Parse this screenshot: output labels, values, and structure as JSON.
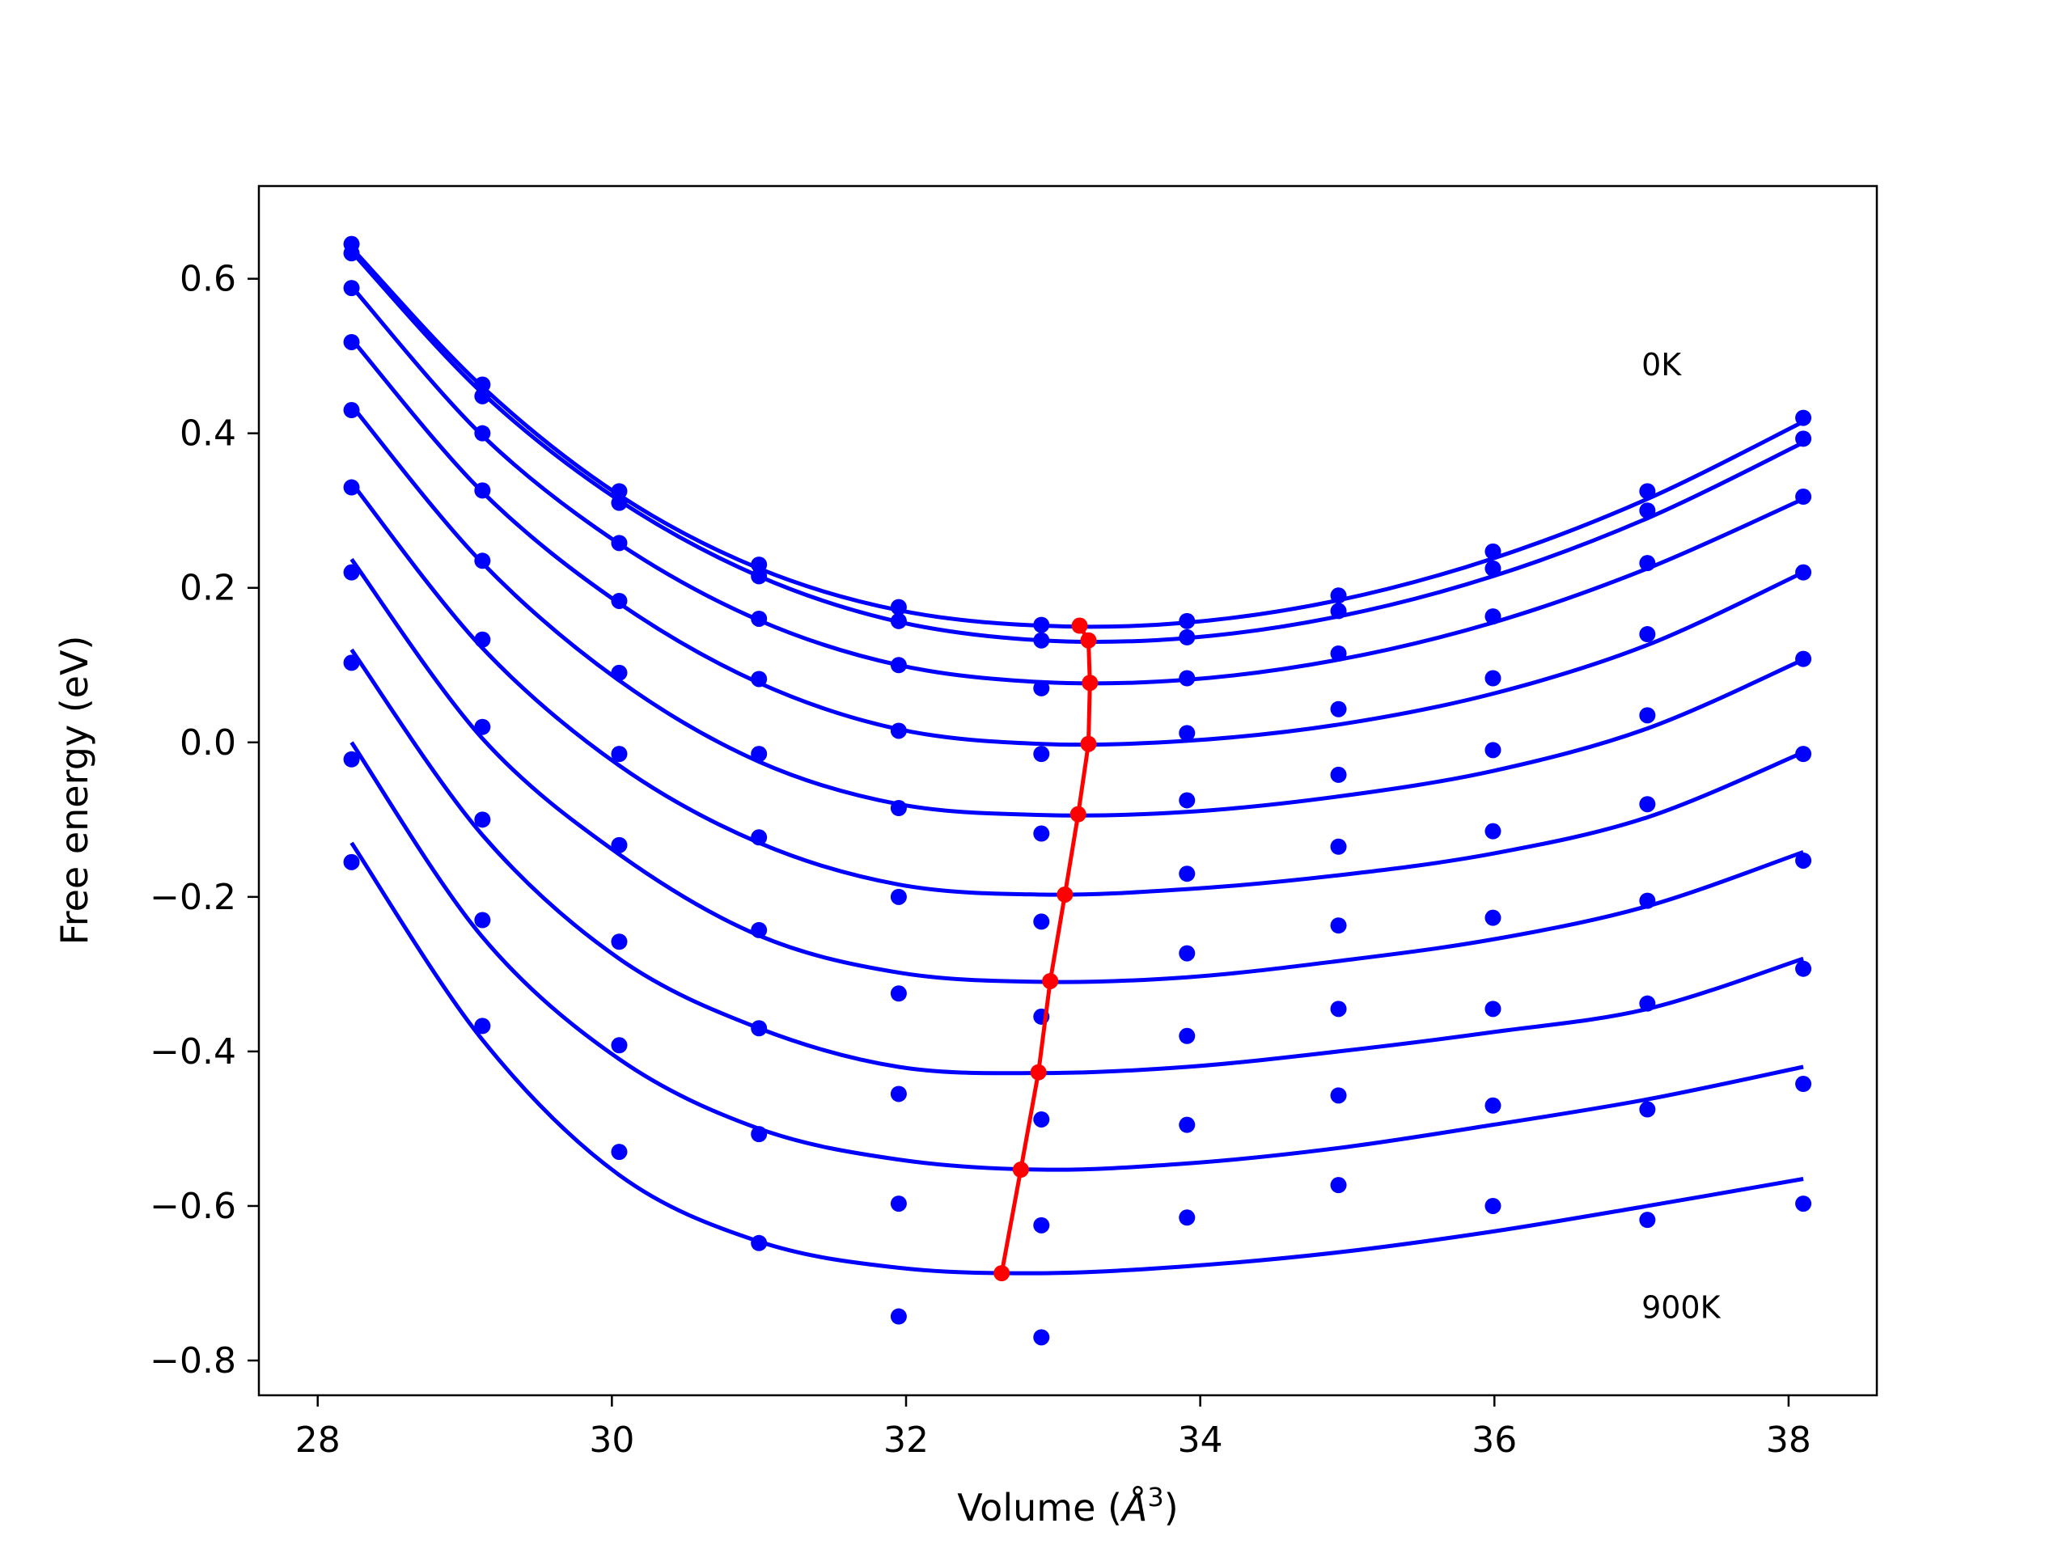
{
  "chart_data": {
    "type": "scatter",
    "title": "",
    "xlabel": "Volume (",
    "xlabel_symbol": "Å",
    "xlabel_exponent": "3",
    "xlabel_close": ")",
    "ylabel": "Free energy (eV)",
    "xlim": [
      27.6,
      38.6
    ],
    "ylim": [
      -0.845,
      0.72
    ],
    "xticks": [
      28,
      30,
      32,
      34,
      36,
      38
    ],
    "xtick_labels": [
      "28",
      "30",
      "32",
      "34",
      "36",
      "38"
    ],
    "yticks": [
      -0.8,
      -0.6,
      -0.4,
      -0.2,
      0.0,
      0.2,
      0.4,
      0.6
    ],
    "ytick_labels": [
      "−0.8",
      "−0.6",
      "−0.4",
      "−0.2",
      "0.0",
      "0.2",
      "0.4",
      "0.6"
    ],
    "grid": false,
    "colors": {
      "points": "#0000ff",
      "fits": "#0000ff",
      "minima": "#ff0000"
    },
    "annotations": [
      {
        "text": "0K",
        "x": 37.0,
        "y": 0.475
      },
      {
        "text": "900K",
        "x": 37.0,
        "y": -0.745
      }
    ],
    "x": [
      28.23,
      29.12,
      30.05,
      31.0,
      31.95,
      32.92,
      33.91,
      34.94,
      35.99,
      37.04,
      38.1
    ],
    "series": [
      {
        "points": [
          0.645,
          0.463,
          0.325,
          0.23,
          0.175,
          0.152,
          0.157,
          0.19,
          0.247,
          0.325,
          0.42
        ],
        "fit": [
          0.64,
          0.46,
          0.32,
          0.225,
          0.171,
          0.151,
          0.155,
          0.184,
          0.238,
          0.315,
          0.415
        ]
      },
      {
        "points": [
          0.633,
          0.448,
          0.31,
          0.215,
          0.157,
          0.132,
          0.136,
          0.17,
          0.225,
          0.3,
          0.393
        ],
        "fit": [
          0.635,
          0.452,
          0.313,
          0.215,
          0.156,
          0.132,
          0.135,
          0.163,
          0.215,
          0.29,
          0.388
        ]
      },
      {
        "points": [
          0.588,
          0.4,
          0.258,
          0.16,
          0.1,
          0.07,
          0.083,
          0.115,
          0.163,
          0.232,
          0.318
        ],
        "fit": [
          0.59,
          0.397,
          0.257,
          0.158,
          0.1,
          0.078,
          0.081,
          0.107,
          0.155,
          0.225,
          0.315
        ]
      },
      {
        "points": [
          0.518,
          0.326,
          0.183,
          0.082,
          0.015,
          -0.015,
          0.012,
          0.043,
          0.083,
          0.14,
          0.22
        ],
        "fit": [
          0.522,
          0.324,
          0.18,
          0.077,
          0.017,
          -0.002,
          0.002,
          0.023,
          0.063,
          0.126,
          0.22
        ]
      },
      {
        "points": [
          0.43,
          0.235,
          0.09,
          -0.015,
          -0.085,
          -0.118,
          -0.075,
          -0.042,
          -0.01,
          0.035,
          0.108
        ],
        "fit": [
          0.436,
          0.232,
          0.08,
          -0.025,
          -0.08,
          -0.094,
          -0.09,
          -0.07,
          -0.037,
          0.018,
          0.107
        ]
      },
      {
        "points": [
          0.33,
          0.133,
          -0.015,
          -0.123,
          -0.2,
          -0.232,
          -0.17,
          -0.135,
          -0.115,
          -0.08,
          -0.015
        ],
        "fit": [
          0.336,
          0.122,
          -0.03,
          -0.13,
          -0.184,
          -0.197,
          -0.19,
          -0.172,
          -0.144,
          -0.097,
          -0.013
        ]
      },
      {
        "points": [
          0.22,
          0.02,
          -0.133,
          -0.243,
          -0.325,
          -0.355,
          -0.273,
          -0.237,
          -0.227,
          -0.205,
          -0.153
        ],
        "fit": [
          0.237,
          0.005,
          -0.145,
          -0.25,
          -0.298,
          -0.31,
          -0.304,
          -0.283,
          -0.255,
          -0.212,
          -0.142
        ]
      },
      {
        "points": [
          0.103,
          -0.1,
          -0.258,
          -0.37,
          -0.455,
          -0.488,
          -0.38,
          -0.345,
          -0.345,
          -0.338,
          -0.293
        ],
        "fit": [
          0.12,
          -0.12,
          -0.28,
          -0.37,
          -0.42,
          -0.428,
          -0.42,
          -0.4,
          -0.375,
          -0.345,
          -0.28
        ]
      },
      {
        "points": [
          -0.022,
          -0.23,
          -0.392,
          -0.507,
          -0.597,
          -0.625,
          -0.495,
          -0.457,
          -0.47,
          -0.475,
          -0.442
        ],
        "fit": [
          0.0,
          -0.252,
          -0.41,
          -0.5,
          -0.54,
          -0.553,
          -0.545,
          -0.525,
          -0.495,
          -0.462,
          -0.42
        ]
      },
      {
        "points": [
          -0.155,
          -0.367,
          -0.53,
          -0.648,
          -0.743,
          -0.77,
          -0.615,
          -0.573,
          -0.6,
          -0.618,
          -0.597
        ],
        "fit": [
          -0.13,
          -0.385,
          -0.56,
          -0.646,
          -0.68,
          -0.687,
          -0.678,
          -0.66,
          -0.633,
          -0.6,
          -0.565
        ]
      }
    ],
    "minima": {
      "x": [
        33.18,
        33.24,
        33.25,
        33.24,
        33.17,
        33.08,
        32.98,
        32.9,
        32.78,
        32.65
      ],
      "y": [
        0.151,
        0.132,
        0.077,
        -0.002,
        -0.093,
        -0.197,
        -0.309,
        -0.427,
        -0.553,
        -0.687
      ]
    }
  }
}
